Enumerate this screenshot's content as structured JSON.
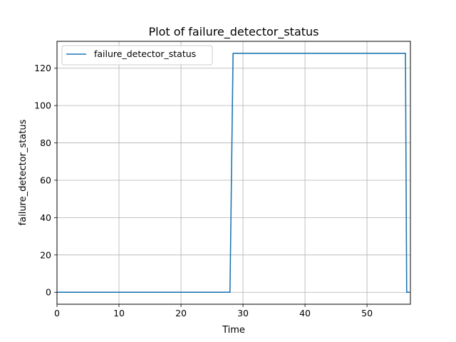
{
  "chart_data": {
    "type": "line",
    "title": "Plot of failure_detector_status",
    "xlabel": "Time",
    "ylabel": "failure_detector_status",
    "xlim": [
      0,
      57
    ],
    "ylim": [
      -6.4,
      134.4
    ],
    "x_ticks": [
      0,
      10,
      20,
      30,
      40,
      50
    ],
    "y_ticks": [
      0,
      20,
      40,
      60,
      80,
      100,
      120
    ],
    "grid": true,
    "legend_position": "upper left",
    "series": [
      {
        "name": "failure_detector_status",
        "color": "#1f77b4",
        "x": [
          0,
          27.9,
          28.4,
          56.2,
          56.4,
          56.9
        ],
        "y": [
          0,
          0,
          128,
          128,
          0,
          0
        ]
      }
    ]
  }
}
